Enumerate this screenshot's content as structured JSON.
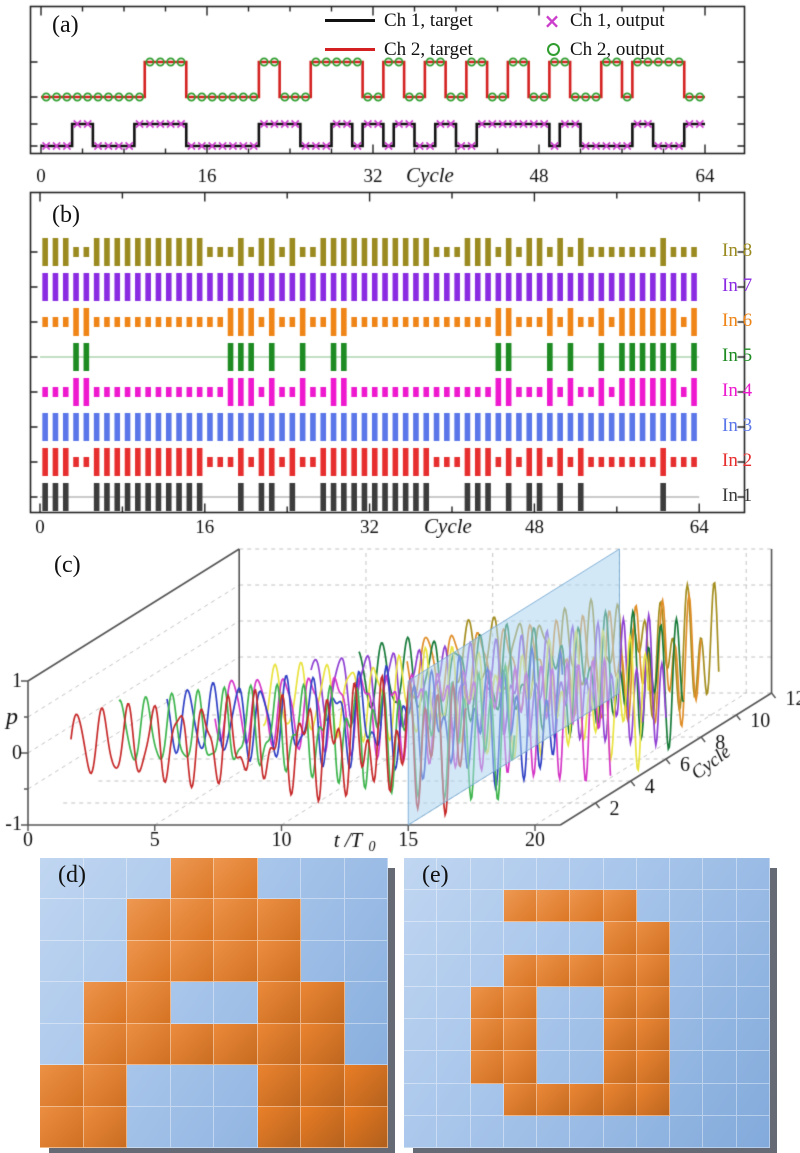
{
  "panel_labels": {
    "a": "(a)",
    "b": "(b)",
    "c": "(c)",
    "d": "(d)",
    "e": "(e)"
  },
  "chart_data": [
    {
      "id": "a",
      "type": "line",
      "subtype": "digital-steps",
      "xlabel": "Cycle",
      "xticks": [
        0,
        16,
        32,
        48,
        64
      ],
      "xlim": [
        0,
        64
      ],
      "legend": [
        {
          "name": "Ch 1, target",
          "color": "#111111",
          "swatch": "line"
        },
        {
          "name": "Ch 2, target",
          "color": "#d42020",
          "swatch": "line"
        },
        {
          "name": "Ch 1, output",
          "color": "#cc3fcc",
          "swatch": "x",
          "glyph": "×"
        },
        {
          "name": "Ch 2, output",
          "color": "#2f9e2f",
          "swatch": "o"
        }
      ],
      "series": [
        {
          "name": "Ch 1, target",
          "color": "#111111",
          "marker": "none",
          "bits": [
            0,
            0,
            0,
            1,
            1,
            0,
            0,
            0,
            0,
            1,
            1,
            1,
            1,
            1,
            0,
            0,
            0,
            0,
            0,
            0,
            0,
            1,
            1,
            1,
            1,
            0,
            0,
            0,
            1,
            1,
            0,
            1,
            1,
            0,
            1,
            1,
            0,
            0,
            1,
            1,
            0,
            0,
            1,
            1,
            1,
            1,
            1,
            1,
            1,
            0,
            1,
            1,
            0,
            0,
            0,
            0,
            0,
            1,
            1,
            0,
            0,
            0,
            1,
            1
          ]
        },
        {
          "name": "Ch 2, target",
          "color": "#d42020",
          "marker": "none",
          "bits": [
            0,
            0,
            0,
            0,
            0,
            0,
            0,
            0,
            0,
            0,
            1,
            1,
            1,
            1,
            0,
            0,
            0,
            0,
            0,
            0,
            0,
            1,
            1,
            0,
            0,
            0,
            1,
            1,
            1,
            1,
            1,
            0,
            0,
            1,
            1,
            0,
            0,
            1,
            1,
            0,
            0,
            1,
            1,
            0,
            0,
            1,
            1,
            0,
            0,
            1,
            1,
            0,
            0,
            0,
            1,
            1,
            0,
            1,
            1,
            1,
            1,
            1,
            0,
            0
          ]
        },
        {
          "name": "Ch 1, output",
          "color": "#cc3fcc",
          "marker": "x",
          "follows": "Ch 1, target"
        },
        {
          "name": "Ch 2, output",
          "color": "#2f9e2f",
          "marker": "o",
          "follows": "Ch 2, target"
        }
      ]
    },
    {
      "id": "b",
      "type": "bar",
      "subtype": "pulse-trains",
      "xlabel": "Cycle",
      "xticks": [
        0,
        16,
        32,
        48,
        64
      ],
      "xlim": [
        0,
        64
      ],
      "patterns": {
        "p1": [
          1,
          1,
          1,
          0,
          0,
          1,
          1,
          1,
          1,
          1,
          1,
          1,
          1,
          1,
          1,
          1,
          0,
          0,
          0,
          1,
          0,
          1,
          1,
          0,
          1,
          0,
          0,
          1,
          1,
          1,
          1,
          1,
          1,
          1,
          1,
          1,
          1,
          1,
          0,
          0,
          0,
          1,
          1,
          1,
          0,
          1,
          0,
          1,
          1,
          0,
          1,
          0,
          1,
          0,
          0,
          0,
          0,
          0,
          0,
          0,
          1,
          0,
          0,
          0
        ],
        "p2": [
          0,
          0,
          0,
          1,
          1,
          0,
          0,
          0,
          0,
          0,
          0,
          0,
          0,
          0,
          0,
          0,
          0,
          0,
          1,
          1,
          1,
          0,
          1,
          0,
          0,
          1,
          0,
          0,
          1,
          1,
          0,
          0,
          0,
          0,
          0,
          0,
          0,
          0,
          0,
          0,
          0,
          0,
          0,
          0,
          1,
          1,
          0,
          0,
          0,
          1,
          0,
          1,
          0,
          0,
          1,
          0,
          1,
          1,
          1,
          1,
          1,
          1,
          0,
          1
        ],
        "ones": "all-1"
      },
      "inputs": [
        {
          "name": "In 8",
          "color": "#9a8a20",
          "pattern": "p1",
          "style": "tall-short"
        },
        {
          "name": "In 7",
          "color": "#8a2be2",
          "pattern": "ones",
          "style": "tall-short"
        },
        {
          "name": "In 6",
          "color": "#ef8417",
          "pattern": "p2",
          "style": "tall-short"
        },
        {
          "name": "In 5",
          "color": "#1d8b22",
          "pattern": "p2",
          "style": "tall-line"
        },
        {
          "name": "In 4",
          "color": "#ee18cf",
          "pattern": "p2",
          "style": "tall-short"
        },
        {
          "name": "In 3",
          "color": "#5b76e8",
          "pattern": "ones",
          "style": "tall-short"
        },
        {
          "name": "In 2",
          "color": "#e62e2e",
          "pattern": "p1",
          "style": "tall-short"
        },
        {
          "name": "In 1",
          "color": "#3c3c3c",
          "pattern": "p1",
          "style": "tall-line"
        }
      ]
    },
    {
      "id": "c",
      "type": "line",
      "subtype": "waterfall-3d",
      "xlabel": "t /T",
      "xlabel_sub": "0",
      "ylabel": "p",
      "zlabel": "Cycle",
      "xticks": [
        0,
        5,
        10,
        15,
        20
      ],
      "yticks": [
        1,
        0,
        -1
      ],
      "zticks": [
        2,
        4,
        6,
        8,
        10,
        12
      ],
      "xlim": [
        0,
        21
      ],
      "ylim": [
        -1,
        1
      ],
      "zlim": [
        0,
        12
      ],
      "plane_t": 15,
      "plane_color": "rgba(173,214,241,0.55)",
      "traces": [
        {
          "cycle": 1,
          "color": "#c62828",
          "start": 1.0,
          "end": 16.6,
          "f1": 1.0,
          "f2": 1.8,
          "ph1": 0.0,
          "ph2": 1.0
        },
        {
          "cycle": 2,
          "color": "#3cb44b",
          "start": 2.2,
          "end": 17.8,
          "f1": 0.98,
          "f2": 1.9,
          "ph1": 1.2,
          "ph2": 2.1
        },
        {
          "cycle": 3,
          "color": "#2e3fc4",
          "start": 3.4,
          "end": 19.0,
          "f1": 1.03,
          "f2": 1.75,
          "ph1": 2.4,
          "ph2": 0.4
        },
        {
          "cycle": 4,
          "color": "#d436c6",
          "start": 4.6,
          "end": 20.2,
          "f1": 0.97,
          "f2": 1.95,
          "ph1": 3.6,
          "ph2": 1.5
        },
        {
          "cycle": 5,
          "color": "#e8e23c",
          "start": 5.8,
          "end": 21.0,
          "f1": 1.01,
          "f2": 1.85,
          "ph1": 4.8,
          "ph2": 2.6
        },
        {
          "cycle": 6,
          "color": "#8e3fd2",
          "start": 7.0,
          "end": 21.0,
          "f1": 0.99,
          "f2": 2.0,
          "ph1": 0.7,
          "ph2": 3.7
        },
        {
          "cycle": 7,
          "color": "#167a38",
          "start": 8.2,
          "end": 21.0,
          "f1": 1.02,
          "f2": 1.8,
          "ph1": 1.9,
          "ph2": 4.8
        },
        {
          "cycle": 8,
          "color": "#df8d26",
          "start": 9.4,
          "end": 21.0,
          "f1": 0.96,
          "f2": 1.9,
          "ph1": 3.1,
          "ph2": 0.9
        },
        {
          "cycle": 9,
          "color": "#a38d1e",
          "start": 10.6,
          "end": 21.0,
          "f1": 1.04,
          "f2": 1.85,
          "ph1": 4.3,
          "ph2": 2.0
        }
      ]
    },
    {
      "id": "d",
      "type": "heatmap",
      "rows": 7,
      "cols": 8,
      "on_color": "#e87f2e",
      "off_color": "#9abbe4",
      "on_cells": [
        [
          0,
          3
        ],
        [
          0,
          4
        ],
        [
          1,
          2
        ],
        [
          1,
          3
        ],
        [
          1,
          4
        ],
        [
          1,
          5
        ],
        [
          2,
          2
        ],
        [
          2,
          3
        ],
        [
          2,
          4
        ],
        [
          2,
          5
        ],
        [
          3,
          1
        ],
        [
          3,
          2
        ],
        [
          3,
          5
        ],
        [
          3,
          6
        ],
        [
          4,
          1
        ],
        [
          4,
          2
        ],
        [
          4,
          3
        ],
        [
          4,
          4
        ],
        [
          4,
          5
        ],
        [
          4,
          6
        ],
        [
          5,
          0
        ],
        [
          5,
          1
        ],
        [
          5,
          5
        ],
        [
          5,
          6
        ],
        [
          5,
          7
        ],
        [
          6,
          0
        ],
        [
          6,
          1
        ],
        [
          6,
          5
        ],
        [
          6,
          6
        ],
        [
          6,
          7
        ]
      ]
    },
    {
      "id": "e",
      "type": "heatmap",
      "rows": 9,
      "cols": 11,
      "on_color": "#e87f2e",
      "off_color": "#9abbe4",
      "on_cells": [
        [
          1,
          3
        ],
        [
          1,
          4
        ],
        [
          1,
          5
        ],
        [
          1,
          6
        ],
        [
          2,
          6
        ],
        [
          2,
          7
        ],
        [
          3,
          3
        ],
        [
          3,
          4
        ],
        [
          3,
          5
        ],
        [
          3,
          6
        ],
        [
          3,
          7
        ],
        [
          4,
          2
        ],
        [
          4,
          3
        ],
        [
          4,
          6
        ],
        [
          4,
          7
        ],
        [
          5,
          2
        ],
        [
          5,
          3
        ],
        [
          5,
          6
        ],
        [
          5,
          7
        ],
        [
          6,
          2
        ],
        [
          6,
          3
        ],
        [
          6,
          6
        ],
        [
          6,
          7
        ],
        [
          7,
          3
        ],
        [
          7,
          4
        ],
        [
          7,
          5
        ],
        [
          7,
          6
        ],
        [
          7,
          7
        ]
      ]
    }
  ]
}
